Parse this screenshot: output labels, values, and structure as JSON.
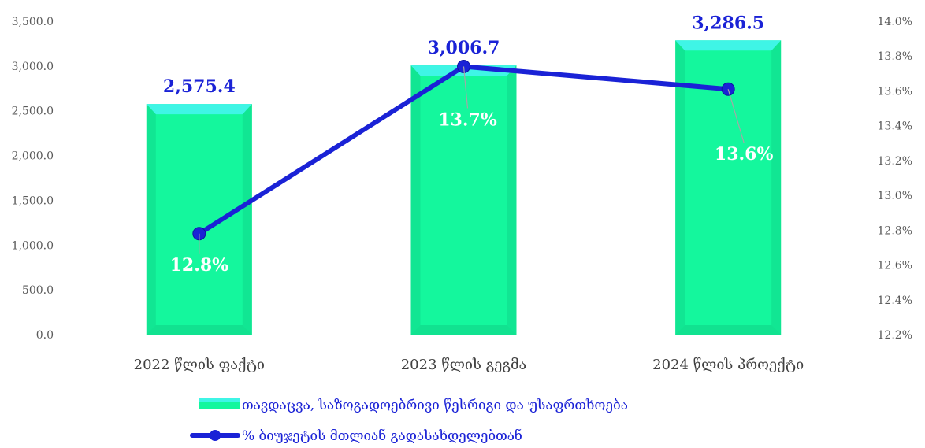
{
  "chart_data": {
    "type": "bar+line",
    "categories": [
      "2022 წლის ფაქტი",
      "2023 წლის გეგმა",
      "2024 წლის პროექტი"
    ],
    "series": [
      {
        "name": "თავდაცვა, საზოგადოებრივი წესრიგი და უსაფრთხოება",
        "type": "bar",
        "axis": "left",
        "values": [
          2575.4,
          3006.7,
          3286.5
        ],
        "labels": [
          "2,575.4",
          "3,006.7",
          "3,286.5"
        ]
      },
      {
        "name": "% ბიუჯეტის მთლიან გადასახდელებთან",
        "type": "line",
        "axis": "right",
        "values": [
          12.78,
          13.74,
          13.61
        ],
        "labels": [
          "12.8%",
          "13.7%",
          "13.6%"
        ]
      }
    ],
    "y_left": {
      "ylim": [
        0,
        3500
      ],
      "ticks": [
        "0.0",
        "500.0",
        "1,000.0",
        "1,500.0",
        "2,000.0",
        "2,500.0",
        "3,000.0",
        "3,500.0"
      ]
    },
    "y_right": {
      "ylim": [
        12.2,
        14.0
      ],
      "ticks": [
        "12.2%",
        "12.4%",
        "12.6%",
        "12.8%",
        "13.0%",
        "13.2%",
        "13.4%",
        "13.6%",
        "13.8%",
        "14.0%"
      ]
    },
    "grid": false,
    "legend_position": "bottom",
    "colors": {
      "bar_fill": "#14f79d",
      "bar_top": "#3ff5e6",
      "bar_edge": "#0fd88a",
      "line": "#1a22d6",
      "bar_label": "#1a22d6",
      "point_label": "#ffffff"
    }
  }
}
